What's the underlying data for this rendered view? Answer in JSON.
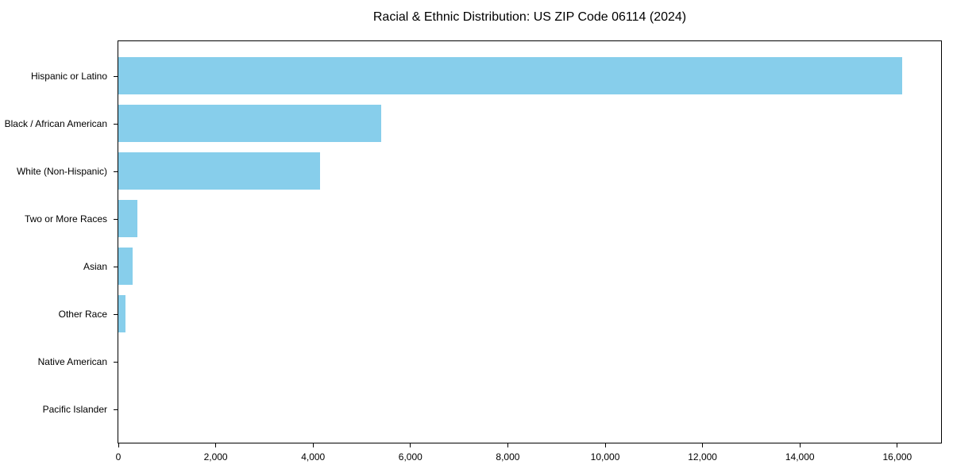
{
  "chart_data": {
    "type": "bar",
    "orientation": "horizontal",
    "title": "Racial & Ethnic Distribution: US ZIP Code 06114 (2024)",
    "categories": [
      "Hispanic or Latino",
      "Black / African American",
      "White (Non-Hispanic)",
      "Two or More Races",
      "Asian",
      "Other Race",
      "Native American",
      "Pacific Islander"
    ],
    "values": [
      16100,
      5400,
      4150,
      390,
      300,
      150,
      0,
      0
    ],
    "xlabel": "",
    "ylabel": "",
    "xlim": [
      0,
      16900
    ],
    "xticks": [
      0,
      2000,
      4000,
      6000,
      8000,
      10000,
      12000,
      14000,
      16000
    ],
    "xtick_labels": [
      "0",
      "2,000",
      "4,000",
      "6,000",
      "8,000",
      "10,000",
      "12,000",
      "14,000",
      "16,000"
    ],
    "bar_color": "#87CEEB",
    "grid": false,
    "legend": false,
    "categories_top_to_bottom": true
  },
  "colors": {
    "bar": "#87CEEB",
    "background": "#ffffff",
    "spine": "#000000",
    "text": "#000000"
  }
}
